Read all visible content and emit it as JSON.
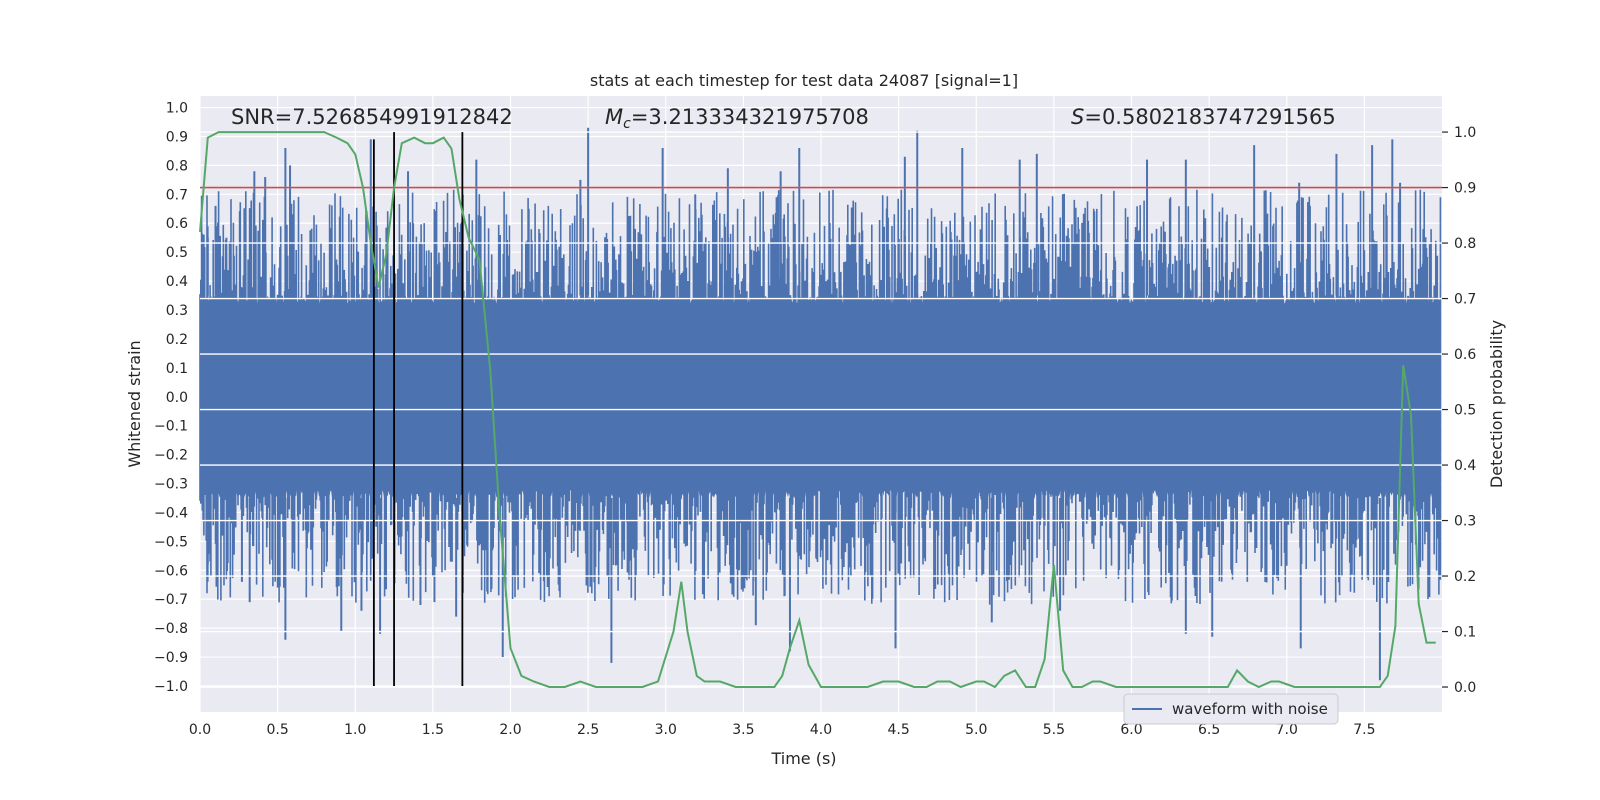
{
  "chart_data": {
    "type": "line",
    "title": "stats at each timestep for test data 24087 [signal=1]",
    "xlabel": "Time (s)",
    "ylabel_left": "Whitened strain",
    "ylabel_right": "Detection probability",
    "xlim": [
      0.0,
      8.0
    ],
    "ylim_left": [
      -1.09,
      1.04
    ],
    "ylim_right": [
      -0.045,
      1.065
    ],
    "x_ticks": [
      "0.0",
      "0.5",
      "1.0",
      "1.5",
      "2.0",
      "2.5",
      "3.0",
      "3.5",
      "4.0",
      "4.5",
      "5.0",
      "5.5",
      "6.0",
      "6.5",
      "7.0",
      "7.5"
    ],
    "y_ticks_left": [
      "1.0",
      "0.9",
      "0.8",
      "0.7",
      "0.6",
      "0.5",
      "0.4",
      "0.3",
      "0.2",
      "0.1",
      "0.0",
      "−0.1",
      "−0.2",
      "−0.3",
      "−0.4",
      "−0.5",
      "−0.6",
      "−0.7",
      "−0.8",
      "−0.9",
      "−1.0"
    ],
    "y_ticks_right": [
      "1.0",
      "0.9",
      "0.8",
      "0.7",
      "0.6",
      "0.5",
      "0.4",
      "0.3",
      "0.2",
      "0.1",
      "0.0"
    ],
    "annotations": {
      "snr": "SNR=7.526854991912842",
      "mc_symbol": "M",
      "mc_sub": "c",
      "mc_value": "=3.213334321975708",
      "s_symbol": "S",
      "s_value": "=0.5802183747291565"
    },
    "threshold": {
      "value": 0.9,
      "axis": "right",
      "color": "#c44e52"
    },
    "vertical_lines": {
      "x": [
        1.12,
        1.25,
        1.69
      ],
      "color": "#000000"
    },
    "waveform": {
      "name": "waveform with noise",
      "color": "#4c72b0",
      "n_samples": 1600,
      "seed": 24087,
      "core_amplitude": 0.35,
      "peaks": [
        {
          "x": 0.05,
          "y": 0.55
        },
        {
          "x": 0.1,
          "y": 0.66
        },
        {
          "x": 0.17,
          "y": 0.55
        },
        {
          "x": 0.35,
          "y": 0.78
        },
        {
          "x": 0.42,
          "y": 0.76
        },
        {
          "x": 0.55,
          "y": 0.86
        },
        {
          "x": 0.58,
          "y": 0.8
        },
        {
          "x": 1.1,
          "y": 0.89
        },
        {
          "x": 1.34,
          "y": 0.78
        },
        {
          "x": 1.78,
          "y": 0.82
        },
        {
          "x": 2.45,
          "y": 0.75
        },
        {
          "x": 2.5,
          "y": 0.93
        },
        {
          "x": 2.98,
          "y": 0.86
        },
        {
          "x": 3.19,
          "y": 0.7
        },
        {
          "x": 3.4,
          "y": 0.79
        },
        {
          "x": 3.74,
          "y": 0.78
        },
        {
          "x": 3.86,
          "y": 0.86
        },
        {
          "x": 4.54,
          "y": 0.83
        },
        {
          "x": 4.62,
          "y": 0.92
        },
        {
          "x": 4.91,
          "y": 0.86
        },
        {
          "x": 5.28,
          "y": 0.82
        },
        {
          "x": 5.39,
          "y": 0.84
        },
        {
          "x": 6.1,
          "y": 0.82
        },
        {
          "x": 6.35,
          "y": 0.82
        },
        {
          "x": 6.79,
          "y": 0.87
        },
        {
          "x": 7.08,
          "y": 0.74
        },
        {
          "x": 7.32,
          "y": 0.84
        },
        {
          "x": 7.55,
          "y": 0.87
        },
        {
          "x": 7.68,
          "y": 0.89
        },
        {
          "x": 7.73,
          "y": 0.74
        },
        {
          "x": 7.88,
          "y": 0.58
        },
        {
          "x": 0.05,
          "y": -0.58
        },
        {
          "x": 0.27,
          "y": -0.64
        },
        {
          "x": 0.32,
          "y": -0.71
        },
        {
          "x": 0.55,
          "y": -0.84
        },
        {
          "x": 0.91,
          "y": -0.81
        },
        {
          "x": 1.04,
          "y": -0.74
        },
        {
          "x": 1.16,
          "y": -0.82
        },
        {
          "x": 1.42,
          "y": -0.72
        },
        {
          "x": 1.51,
          "y": -0.71
        },
        {
          "x": 1.65,
          "y": -0.76
        },
        {
          "x": 1.95,
          "y": -0.9
        },
        {
          "x": 2.65,
          "y": -0.92
        },
        {
          "x": 3.58,
          "y": -0.79
        },
        {
          "x": 3.8,
          "y": -0.88
        },
        {
          "x": 4.48,
          "y": -0.87
        },
        {
          "x": 5.1,
          "y": -0.78
        },
        {
          "x": 5.54,
          "y": -0.74
        },
        {
          "x": 6.35,
          "y": -0.82
        },
        {
          "x": 6.52,
          "y": -0.83
        },
        {
          "x": 7.09,
          "y": -0.87
        },
        {
          "x": 7.6,
          "y": -0.98
        }
      ]
    },
    "detection_probability": {
      "color": "#55a868",
      "axis": "right",
      "x": [
        0.0,
        0.05,
        0.12,
        0.2,
        0.3,
        0.4,
        0.5,
        0.6,
        0.7,
        0.8,
        0.88,
        0.95,
        1.0,
        1.05,
        1.1,
        1.15,
        1.2,
        1.25,
        1.3,
        1.38,
        1.45,
        1.5,
        1.57,
        1.62,
        1.67,
        1.73,
        1.8,
        1.87,
        1.93,
        2.0,
        2.07,
        2.15,
        2.25,
        2.35,
        2.45,
        2.55,
        2.7,
        2.85,
        2.95,
        3.05,
        3.1,
        3.14,
        3.2,
        3.25,
        3.35,
        3.45,
        3.5,
        3.6,
        3.7,
        3.75,
        3.8,
        3.86,
        3.92,
        4.0,
        4.1,
        4.2,
        4.3,
        4.4,
        4.5,
        4.6,
        4.68,
        4.75,
        4.83,
        4.9,
        5.0,
        5.05,
        5.12,
        5.18,
        5.25,
        5.32,
        5.38,
        5.44,
        5.5,
        5.56,
        5.62,
        5.68,
        5.75,
        5.8,
        5.9,
        6.0,
        6.15,
        6.3,
        6.45,
        6.55,
        6.62,
        6.68,
        6.75,
        6.82,
        6.9,
        6.95,
        7.05,
        7.15,
        7.25,
        7.4,
        7.5,
        7.6,
        7.65,
        7.7,
        7.75,
        7.8,
        7.85,
        7.9,
        7.96
      ],
      "y": [
        0.82,
        0.99,
        1.0,
        1.0,
        1.0,
        1.0,
        1.0,
        1.0,
        1.0,
        1.0,
        0.99,
        0.98,
        0.96,
        0.9,
        0.8,
        0.72,
        0.78,
        0.9,
        0.98,
        0.99,
        0.98,
        0.98,
        0.99,
        0.97,
        0.88,
        0.81,
        0.77,
        0.57,
        0.31,
        0.07,
        0.02,
        0.01,
        0.0,
        0.0,
        0.01,
        0.0,
        0.0,
        0.0,
        0.01,
        0.1,
        0.19,
        0.1,
        0.02,
        0.01,
        0.01,
        0.0,
        0.0,
        0.0,
        0.0,
        0.02,
        0.07,
        0.12,
        0.04,
        0.0,
        0.0,
        0.0,
        0.0,
        0.01,
        0.01,
        0.0,
        0.0,
        0.01,
        0.01,
        0.0,
        0.01,
        0.01,
        0.0,
        0.02,
        0.03,
        0.0,
        0.0,
        0.05,
        0.22,
        0.03,
        0.0,
        0.0,
        0.01,
        0.01,
        0.0,
        0.0,
        0.0,
        0.0,
        0.0,
        0.0,
        0.0,
        0.03,
        0.01,
        0.0,
        0.01,
        0.01,
        0.0,
        0.0,
        0.0,
        0.0,
        0.0,
        0.0,
        0.02,
        0.11,
        0.58,
        0.49,
        0.15,
        0.08,
        0.08
      ]
    },
    "legend": {
      "label": "waveform with noise",
      "position": "bottom-right"
    }
  }
}
